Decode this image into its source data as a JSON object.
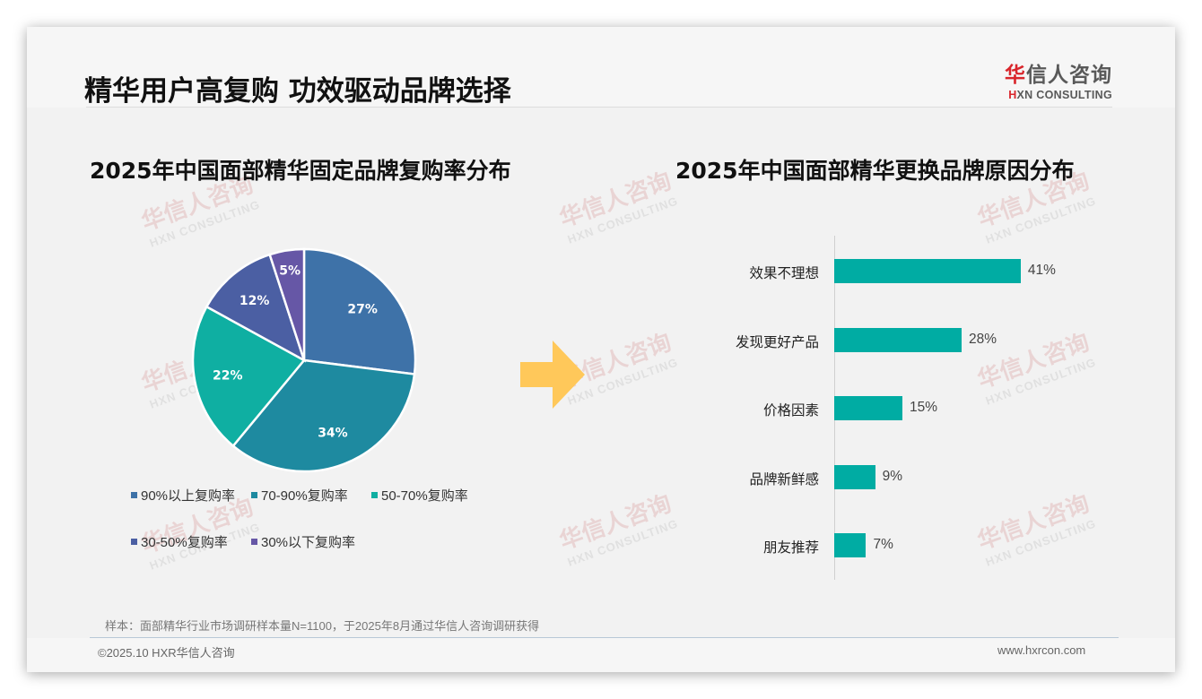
{
  "header": {
    "title": "精华用户高复购 功效驱动品牌选择",
    "logo": {
      "cn_first": "华",
      "cn_rest": "信人咨询",
      "en_first": "H",
      "en_rest": "XN CONSULTING"
    }
  },
  "watermark": {
    "cn": "华信人咨询",
    "en": "HXN CONSULTING"
  },
  "left_chart": {
    "title": "2025年中国面部精华固定品牌复购率分布"
  },
  "right_chart": {
    "title": "2025年中国面部精华更换品牌原因分布"
  },
  "chart_data": [
    {
      "type": "pie",
      "title": "2025年中国面部精华固定品牌复购率分布",
      "categories": [
        "90%以上复购率",
        "70-90%复购率",
        "50-70%复购率",
        "30-50%复购率",
        "30%以下复购率"
      ],
      "values": [
        27,
        34,
        22,
        12,
        5
      ],
      "labels": [
        "27%",
        "34%",
        "22%",
        "12%",
        "5%"
      ],
      "colors": [
        "#3e72a8",
        "#1e8aa0",
        "#0fafa2",
        "#4b5fa3",
        "#6657a6"
      ],
      "start_angle": "12 o'clock",
      "direction": "clockwise",
      "legend_position": "bottom"
    },
    {
      "type": "bar",
      "orientation": "horizontal",
      "title": "2025年中国面部精华更换品牌原因分布",
      "categories": [
        "效果不理想",
        "发现更好产品",
        "价格因素",
        "品牌新鲜感",
        "朋友推荐"
      ],
      "values": [
        41,
        28,
        15,
        9,
        7
      ],
      "labels": [
        "41%",
        "28%",
        "15%",
        "9%",
        "7%"
      ],
      "unit": "%",
      "color": "#00aca3",
      "grid": false,
      "xlabel": "",
      "ylabel": ""
    }
  ],
  "connector_arrow": {
    "color": "#ffc85a",
    "direction": "right"
  },
  "footer": {
    "source_note": "样本：面部精华行业市场调研样本量N=1100，于2025年8月通过华信人咨询调研获得",
    "copyright": "©2025.10 HXR华信人咨询",
    "website": "www.hxrcon.com"
  }
}
